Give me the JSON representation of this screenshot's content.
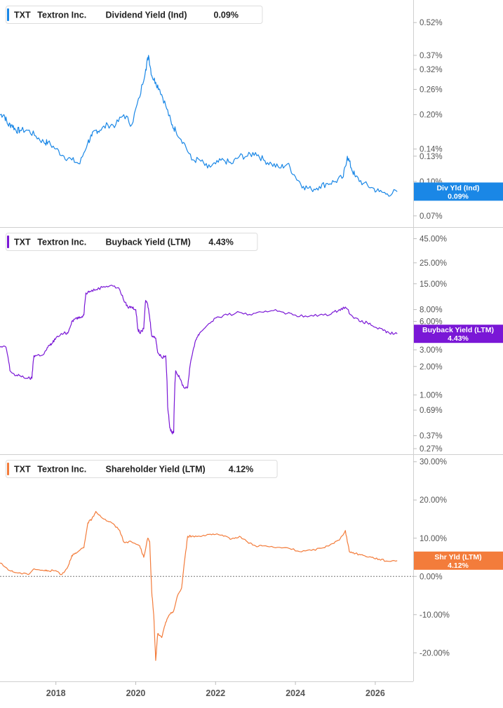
{
  "chart_data": [
    {
      "type": "line",
      "ticker": "TXT",
      "company": "Textron Inc.",
      "metric": "Dividend Yield (Ind)",
      "value_label": "0.09%",
      "badge_label": "Div Yld (Ind)",
      "color": "#1a87e6",
      "scale": "log",
      "ylim": [
        0.066,
        0.62
      ],
      "yticks": [
        {
          "v": 0.52,
          "label": "0.52%"
        },
        {
          "v": 0.37,
          "label": "0.37%"
        },
        {
          "v": 0.32,
          "label": "0.32%"
        },
        {
          "v": 0.26,
          "label": "0.26%"
        },
        {
          "v": 0.2,
          "label": "0.20%"
        },
        {
          "v": 0.14,
          "label": "0.14%"
        },
        {
          "v": 0.13,
          "label": "0.13%"
        },
        {
          "v": 0.1,
          "label": "0.10%"
        },
        {
          "v": 0.07,
          "label": "0.07%"
        }
      ],
      "current_value": 0.09,
      "x": [
        2016.6,
        2016.7,
        2016.8,
        2016.9,
        2017.0,
        2017.1,
        2017.3,
        2017.5,
        2017.7,
        2017.8,
        2018.0,
        2018.2,
        2018.4,
        2018.6,
        2018.8,
        2018.9,
        2019.0,
        2019.1,
        2019.3,
        2019.5,
        2019.7,
        2019.9,
        2020.1,
        2020.25,
        2020.32,
        2020.4,
        2020.5,
        2020.6,
        2020.75,
        2020.9,
        2021.0,
        2021.2,
        2021.4,
        2021.6,
        2021.8,
        2022.0,
        2022.2,
        2022.4,
        2022.6,
        2022.8,
        2023.0,
        2023.2,
        2023.4,
        2023.6,
        2023.8,
        2024.0,
        2024.2,
        2024.4,
        2024.6,
        2024.8,
        2025.0,
        2025.2,
        2025.3,
        2025.4,
        2025.5,
        2025.7,
        2025.9,
        2026.1,
        2026.3,
        2026.55
      ],
      "values": [
        0.2,
        0.2,
        0.18,
        0.18,
        0.17,
        0.17,
        0.17,
        0.16,
        0.15,
        0.15,
        0.14,
        0.13,
        0.125,
        0.12,
        0.15,
        0.16,
        0.17,
        0.17,
        0.18,
        0.18,
        0.2,
        0.18,
        0.24,
        0.32,
        0.37,
        0.3,
        0.28,
        0.26,
        0.22,
        0.18,
        0.17,
        0.15,
        0.125,
        0.125,
        0.115,
        0.12,
        0.125,
        0.12,
        0.13,
        0.13,
        0.135,
        0.125,
        0.12,
        0.115,
        0.12,
        0.105,
        0.095,
        0.092,
        0.095,
        0.098,
        0.1,
        0.105,
        0.13,
        0.115,
        0.105,
        0.098,
        0.094,
        0.09,
        0.088,
        0.09
      ]
    },
    {
      "type": "line",
      "ticker": "TXT",
      "company": "Textron Inc.",
      "metric": "Buyback Yield (LTM)",
      "value_label": "4.43%",
      "badge_label": "Buyback Yield (LTM)",
      "color": "#7a17d6",
      "scale": "log",
      "ylim": [
        0.27,
        52
      ],
      "yticks": [
        {
          "v": 45,
          "label": "45.00%"
        },
        {
          "v": 25,
          "label": "25.00%"
        },
        {
          "v": 15,
          "label": "15.00%"
        },
        {
          "v": 8,
          "label": "8.00%"
        },
        {
          "v": 6,
          "label": "6.00%"
        },
        {
          "v": 3,
          "label": "3.00%"
        },
        {
          "v": 2,
          "label": "2.00%"
        },
        {
          "v": 1,
          "label": "1.00%"
        },
        {
          "v": 0.69,
          "label": "0.69%"
        },
        {
          "v": 0.37,
          "label": "0.37%"
        },
        {
          "v": 0.27,
          "label": "0.27%"
        }
      ],
      "current_value": 4.43,
      "x": [
        2016.6,
        2016.75,
        2016.85,
        2017.0,
        2017.1,
        2017.3,
        2017.4,
        2017.45,
        2017.5,
        2017.7,
        2017.8,
        2017.9,
        2018.0,
        2018.2,
        2018.3,
        2018.4,
        2018.5,
        2018.6,
        2018.7,
        2018.75,
        2018.85,
        2019.0,
        2019.2,
        2019.4,
        2019.6,
        2019.7,
        2019.8,
        2019.9,
        2020.0,
        2020.05,
        2020.1,
        2020.2,
        2020.25,
        2020.3,
        2020.35,
        2020.4,
        2020.5,
        2020.55,
        2020.65,
        2020.75,
        2020.8,
        2020.85,
        2020.9,
        2020.95,
        2021.0,
        2021.1,
        2021.2,
        2021.3,
        2021.4,
        2021.5,
        2021.6,
        2021.8,
        2022.0,
        2022.3,
        2022.6,
        2022.9,
        2023.2,
        2023.5,
        2023.8,
        2024.0,
        2024.3,
        2024.6,
        2024.9,
        2025.1,
        2025.25,
        2025.4,
        2025.6,
        2025.8,
        2026.0,
        2026.2,
        2026.35,
        2026.55
      ],
      "values": [
        3.2,
        3.2,
        1.8,
        1.6,
        1.6,
        1.5,
        1.5,
        2.6,
        2.6,
        2.7,
        3.2,
        3.5,
        4.0,
        4.5,
        4.5,
        6.0,
        6.5,
        6.5,
        7.0,
        12,
        12.5,
        13,
        14,
        14.5,
        13,
        10,
        8.5,
        8.5,
        8,
        5,
        4.5,
        5,
        10,
        9,
        6.5,
        4.2,
        4.0,
        2.8,
        2.5,
        2.6,
        0.75,
        0.45,
        0.4,
        0.4,
        1.8,
        1.5,
        1.2,
        1.2,
        2.5,
        3.8,
        4.5,
        5.5,
        6.5,
        7.0,
        7.5,
        7.0,
        7.5,
        8,
        7.3,
        7.0,
        6.7,
        7.0,
        7.2,
        8.0,
        8.5,
        7.0,
        6.0,
        5.8,
        5.2,
        4.8,
        4.5,
        4.43
      ]
    },
    {
      "type": "line",
      "ticker": "TXT",
      "company": "Textron Inc.",
      "metric": "Shareholder Yield (LTM)",
      "value_label": "4.12%",
      "badge_label": "Shr Yld (LTM)",
      "color": "#f37c3b",
      "scale": "linear",
      "ylim": [
        -26,
        30.5
      ],
      "yticks": [
        {
          "v": 30,
          "label": "30.00%"
        },
        {
          "v": 20,
          "label": "20.00%"
        },
        {
          "v": 10,
          "label": "10.00%"
        },
        {
          "v": 0,
          "label": "0.00%"
        },
        {
          "v": -10,
          "label": "-10.00%"
        },
        {
          "v": -20,
          "label": "-20.00%"
        }
      ],
      "zero_line": true,
      "current_value": 4.12,
      "x": [
        2016.6,
        2016.85,
        2017.0,
        2017.3,
        2017.45,
        2017.7,
        2017.8,
        2018.0,
        2018.15,
        2018.3,
        2018.4,
        2018.5,
        2018.7,
        2018.8,
        2018.9,
        2019.0,
        2019.2,
        2019.4,
        2019.6,
        2019.7,
        2019.9,
        2020.1,
        2020.2,
        2020.3,
        2020.35,
        2020.4,
        2020.45,
        2020.5,
        2020.55,
        2020.65,
        2020.75,
        2020.85,
        2020.95,
        2021.05,
        2021.15,
        2021.2,
        2021.3,
        2021.4,
        2021.6,
        2021.8,
        2022.0,
        2022.2,
        2022.4,
        2022.6,
        2022.8,
        2023.0,
        2023.2,
        2023.5,
        2023.8,
        2024.1,
        2024.4,
        2024.7,
        2024.9,
        2025.1,
        2025.25,
        2025.35,
        2025.5,
        2025.7,
        2025.9,
        2026.1,
        2026.3,
        2026.55
      ],
      "values": [
        3.5,
        1.5,
        1.0,
        0.5,
        2.0,
        1.5,
        1.5,
        1.5,
        0.5,
        2.5,
        5.5,
        6.0,
        7.5,
        14,
        15,
        17,
        15,
        14,
        12,
        9,
        9,
        8,
        5,
        10,
        9,
        -4,
        -10,
        -22,
        -15,
        -16,
        -12,
        -10,
        -9,
        -5,
        -3,
        2,
        10.5,
        10.5,
        10.5,
        11,
        11,
        10.5,
        9.8,
        10.5,
        9,
        8,
        8,
        7.5,
        7.5,
        6.5,
        6.8,
        7.5,
        8.5,
        9.5,
        12,
        6.5,
        6.0,
        5.5,
        5.0,
        4.5,
        4.0,
        4.12
      ]
    }
  ],
  "x_axis": {
    "ticks": [
      {
        "v": 2018,
        "label": "2018"
      },
      {
        "v": 2020,
        "label": "2020"
      },
      {
        "v": 2022,
        "label": "2022"
      },
      {
        "v": 2024,
        "label": "2024"
      },
      {
        "v": 2026,
        "label": "2026"
      }
    ],
    "range": [
      2016.6,
      2026.95
    ]
  }
}
